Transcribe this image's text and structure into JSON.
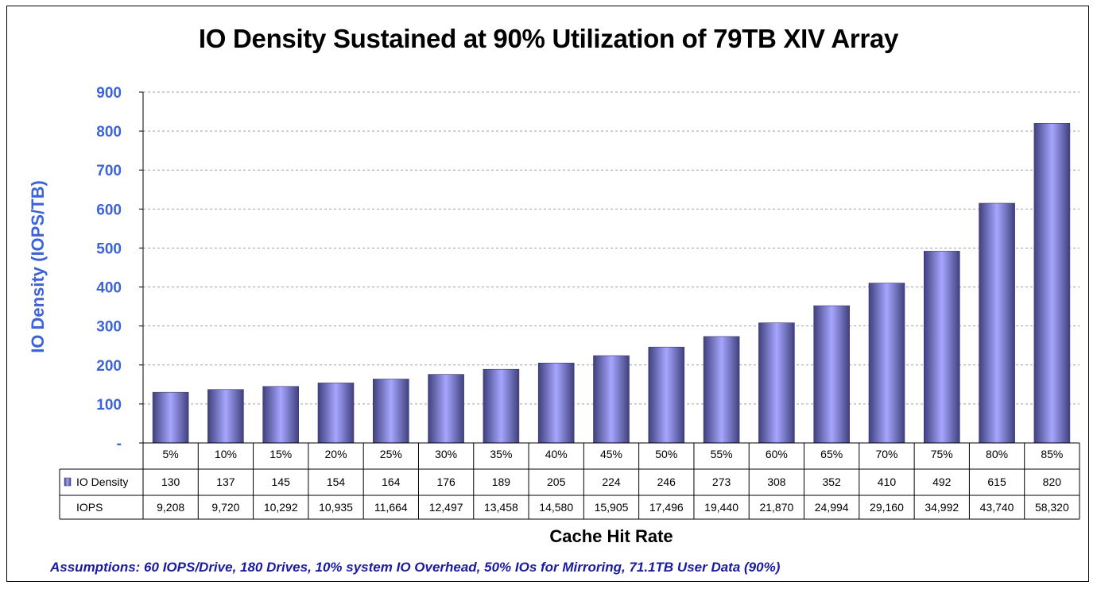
{
  "chart_data": {
    "type": "bar",
    "title": "IO Density Sustained at 90% Utilization of 79TB XIV Array",
    "xlabel": "Cache Hit Rate",
    "ylabel": "IO Density (IOPS/TB)",
    "ylim": [
      0,
      900
    ],
    "yticks": [
      "-",
      "100",
      "200",
      "300",
      "400",
      "500",
      "600",
      "700",
      "800",
      "900"
    ],
    "grid": true,
    "categories": [
      "5%",
      "10%",
      "15%",
      "20%",
      "25%",
      "30%",
      "35%",
      "40%",
      "45%",
      "50%",
      "55%",
      "60%",
      "65%",
      "70%",
      "75%",
      "80%",
      "85%"
    ],
    "series": [
      {
        "name": "IO Density",
        "values": [
          130,
          137,
          145,
          154,
          164,
          176,
          189,
          205,
          224,
          246,
          273,
          308,
          352,
          410,
          492,
          615,
          820
        ],
        "labels": [
          "130",
          "137",
          "145",
          "154",
          "164",
          "176",
          "189",
          "205",
          "224",
          "246",
          "273",
          "308",
          "352",
          "410",
          "492",
          "615",
          "820"
        ]
      }
    ],
    "table_rows": [
      {
        "name": "IOPS",
        "values": [
          "9,208",
          "9,720",
          "10,292",
          "10,935",
          "11,664",
          "12,497",
          "13,458",
          "14,580",
          "15,905",
          "17,496",
          "19,440",
          "21,870",
          "24,994",
          "29,160",
          "34,992",
          "43,740",
          "58,320"
        ]
      }
    ],
    "colors": {
      "bar_light": "#a6a6ff",
      "bar_dark": "#40407e",
      "tick_text": "#3c64d7"
    }
  },
  "footer": {
    "assumptions": "Assumptions: 60 IOPS/Drive, 180 Drives, 10% system IO Overhead, 50% IOs for Mirroring, 71.1TB User Data (90%)"
  }
}
